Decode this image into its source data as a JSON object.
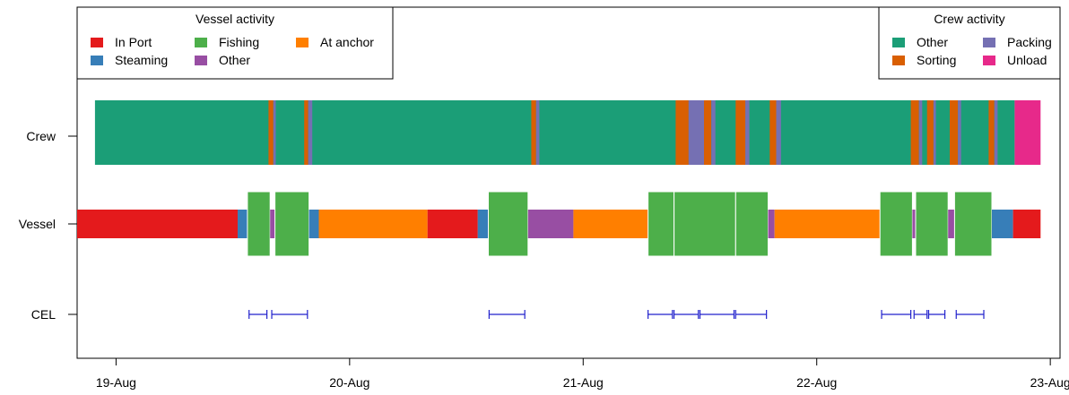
{
  "chart_data": {
    "type": "timeline",
    "title": "",
    "xlabel": "",
    "ylabel": "",
    "x_ticks": [
      "19-Aug",
      "20-Aug",
      "21-Aug",
      "22-Aug",
      "23-Aug"
    ],
    "x_range": [
      "2023-08-18 20:00",
      "2023-08-23 01:00"
    ],
    "rows": [
      "Crew",
      "Vessel",
      "CEL"
    ],
    "colors": {
      "In Port": "#E41A1C",
      "Steaming": "#377EB8",
      "Fishing": "#4DAF4A",
      "VesselOther": "#984EA3",
      "At anchor": "#FF7F00",
      "CrewOther": "#1B9E77",
      "Sorting": "#D95F02",
      "Packing": "#7570B3",
      "Unload": "#E7298A",
      "CEL": "#2222CC"
    },
    "legends": {
      "vessel": {
        "title": "Vessel activity",
        "placement": "top-left",
        "entries": [
          {
            "label": "In Port",
            "color_key": "In Port"
          },
          {
            "label": "Steaming",
            "color_key": "Steaming"
          },
          {
            "label": "Fishing",
            "color_key": "Fishing"
          },
          {
            "label": "Other",
            "color_key": "VesselOther"
          },
          {
            "label": "At anchor",
            "color_key": "At anchor"
          }
        ]
      },
      "crew": {
        "title": "Crew activity",
        "placement": "top-right",
        "entries": [
          {
            "label": "Other",
            "color_key": "CrewOther"
          },
          {
            "label": "Sorting",
            "color_key": "Sorting"
          },
          {
            "label": "Packing",
            "color_key": "Packing"
          },
          {
            "label": "Unload",
            "color_key": "Unload"
          }
        ]
      }
    },
    "vessel": [
      {
        "activity": "In Port",
        "color_key": "In Port",
        "start": "2023-08-18 20:00",
        "end": "2023-08-19 12:30"
      },
      {
        "activity": "Steaming",
        "color_key": "Steaming",
        "start": "2023-08-19 12:30",
        "end": "2023-08-19 13:30"
      },
      {
        "activity": "Fishing",
        "color_key": "Fishing",
        "start": "2023-08-19 13:30",
        "end": "2023-08-19 15:50"
      },
      {
        "activity": "Other",
        "color_key": "VesselOther",
        "start": "2023-08-19 15:50",
        "end": "2023-08-19 16:20"
      },
      {
        "activity": "Fishing",
        "color_key": "Fishing",
        "start": "2023-08-19 16:20",
        "end": "2023-08-19 19:50"
      },
      {
        "activity": "Steaming",
        "color_key": "Steaming",
        "start": "2023-08-19 19:50",
        "end": "2023-08-19 20:50"
      },
      {
        "activity": "At anchor",
        "color_key": "At anchor",
        "start": "2023-08-19 20:50",
        "end": "2023-08-20 08:00"
      },
      {
        "activity": "In Port",
        "color_key": "In Port",
        "start": "2023-08-20 08:00",
        "end": "2023-08-20 13:10"
      },
      {
        "activity": "Steaming",
        "color_key": "Steaming",
        "start": "2023-08-20 13:10",
        "end": "2023-08-20 14:15"
      },
      {
        "activity": "Fishing",
        "color_key": "Fishing",
        "start": "2023-08-20 14:15",
        "end": "2023-08-20 18:20"
      },
      {
        "activity": "Other",
        "color_key": "VesselOther",
        "start": "2023-08-20 18:20",
        "end": "2023-08-20 23:00"
      },
      {
        "activity": "At anchor",
        "color_key": "At anchor",
        "start": "2023-08-20 23:00",
        "end": "2023-08-21 06:40"
      },
      {
        "activity": "Fishing",
        "color_key": "Fishing",
        "start": "2023-08-21 06:40",
        "end": "2023-08-21 09:20"
      },
      {
        "activity": "Fishing",
        "color_key": "Fishing",
        "start": "2023-08-21 09:20",
        "end": "2023-08-21 15:40"
      },
      {
        "activity": "Fishing",
        "color_key": "Fishing",
        "start": "2023-08-21 15:40",
        "end": "2023-08-21 19:00"
      },
      {
        "activity": "Other",
        "color_key": "VesselOther",
        "start": "2023-08-21 19:00",
        "end": "2023-08-21 19:40"
      },
      {
        "activity": "At anchor",
        "color_key": "At anchor",
        "start": "2023-08-21 19:40",
        "end": "2023-08-22 06:30"
      },
      {
        "activity": "Fishing",
        "color_key": "Fishing",
        "start": "2023-08-22 06:30",
        "end": "2023-08-22 09:50"
      },
      {
        "activity": "Other",
        "color_key": "VesselOther",
        "start": "2023-08-22 09:50",
        "end": "2023-08-22 10:10"
      },
      {
        "activity": "Fishing",
        "color_key": "Fishing",
        "start": "2023-08-22 10:10",
        "end": "2023-08-22 13:30"
      },
      {
        "activity": "Other",
        "color_key": "VesselOther",
        "start": "2023-08-22 13:30",
        "end": "2023-08-22 14:10"
      },
      {
        "activity": "Fishing",
        "color_key": "Fishing",
        "start": "2023-08-22 14:10",
        "end": "2023-08-22 18:00"
      },
      {
        "activity": "Steaming",
        "color_key": "Steaming",
        "start": "2023-08-22 18:00",
        "end": "2023-08-22 20:10"
      },
      {
        "activity": "In Port",
        "color_key": "In Port",
        "start": "2023-08-22 20:10",
        "end": "2023-08-22 23:00"
      }
    ],
    "crew": [
      {
        "activity": "Other",
        "color_key": "CrewOther",
        "start": "2023-08-18 21:50",
        "end": "2023-08-22 20:20"
      },
      {
        "activity": "Sorting",
        "color_key": "Sorting",
        "start": "2023-08-19 15:40",
        "end": "2023-08-19 16:10"
      },
      {
        "activity": "Packing",
        "color_key": "Packing",
        "start": "2023-08-19 16:10",
        "end": "2023-08-19 16:25"
      },
      {
        "activity": "Sorting",
        "color_key": "Sorting",
        "start": "2023-08-19 19:20",
        "end": "2023-08-19 19:45"
      },
      {
        "activity": "Packing",
        "color_key": "Packing",
        "start": "2023-08-19 19:45",
        "end": "2023-08-19 20:10"
      },
      {
        "activity": "Sorting",
        "color_key": "Sorting",
        "start": "2023-08-20 18:40",
        "end": "2023-08-20 19:10"
      },
      {
        "activity": "Packing",
        "color_key": "Packing",
        "start": "2023-08-20 19:10",
        "end": "2023-08-20 19:30"
      },
      {
        "activity": "Sorting",
        "color_key": "Sorting",
        "start": "2023-08-21 09:30",
        "end": "2023-08-21 10:50"
      },
      {
        "activity": "Packing",
        "color_key": "Packing",
        "start": "2023-08-21 10:50",
        "end": "2023-08-21 12:25"
      },
      {
        "activity": "Sorting",
        "color_key": "Sorting",
        "start": "2023-08-21 12:25",
        "end": "2023-08-21 13:10"
      },
      {
        "activity": "Packing",
        "color_key": "Packing",
        "start": "2023-08-21 13:10",
        "end": "2023-08-21 13:35"
      },
      {
        "activity": "Sorting",
        "color_key": "Sorting",
        "start": "2023-08-21 15:40",
        "end": "2023-08-21 16:40"
      },
      {
        "activity": "Packing",
        "color_key": "Packing",
        "start": "2023-08-21 16:40",
        "end": "2023-08-21 17:05"
      },
      {
        "activity": "Sorting",
        "color_key": "Sorting",
        "start": "2023-08-21 19:10",
        "end": "2023-08-21 19:50"
      },
      {
        "activity": "Packing",
        "color_key": "Packing",
        "start": "2023-08-21 19:50",
        "end": "2023-08-21 20:20"
      },
      {
        "activity": "Sorting",
        "color_key": "Sorting",
        "start": "2023-08-22 09:40",
        "end": "2023-08-22 10:30"
      },
      {
        "activity": "Packing",
        "color_key": "Packing",
        "start": "2023-08-22 10:30",
        "end": "2023-08-22 10:50"
      },
      {
        "activity": "Sorting",
        "color_key": "Sorting",
        "start": "2023-08-22 11:20",
        "end": "2023-08-22 12:00"
      },
      {
        "activity": "Packing",
        "color_key": "Packing",
        "start": "2023-08-22 12:00",
        "end": "2023-08-22 12:15"
      },
      {
        "activity": "Sorting",
        "color_key": "Sorting",
        "start": "2023-08-22 13:40",
        "end": "2023-08-22 14:30"
      },
      {
        "activity": "Packing",
        "color_key": "Packing",
        "start": "2023-08-22 14:30",
        "end": "2023-08-22 14:50"
      },
      {
        "activity": "Sorting",
        "color_key": "Sorting",
        "start": "2023-08-22 17:40",
        "end": "2023-08-22 18:15"
      },
      {
        "activity": "Packing",
        "color_key": "Packing",
        "start": "2023-08-22 18:15",
        "end": "2023-08-22 18:35"
      },
      {
        "activity": "Unload",
        "color_key": "Unload",
        "start": "2023-08-22 20:20",
        "end": "2023-08-22 23:00"
      }
    ],
    "cel": [
      {
        "start": "2023-08-19 13:40",
        "end": "2023-08-19 15:30"
      },
      {
        "start": "2023-08-19 16:00",
        "end": "2023-08-19 19:40"
      },
      {
        "start": "2023-08-20 14:20",
        "end": "2023-08-20 18:00"
      },
      {
        "start": "2023-08-21 06:40",
        "end": "2023-08-21 09:10"
      },
      {
        "start": "2023-08-21 09:20",
        "end": "2023-08-21 11:50"
      },
      {
        "start": "2023-08-21 12:00",
        "end": "2023-08-21 15:30"
      },
      {
        "start": "2023-08-21 15:40",
        "end": "2023-08-21 18:50"
      },
      {
        "start": "2023-08-22 06:40",
        "end": "2023-08-22 09:40"
      },
      {
        "start": "2023-08-22 10:00",
        "end": "2023-08-22 11:20"
      },
      {
        "start": "2023-08-22 11:30",
        "end": "2023-08-22 13:10"
      },
      {
        "start": "2023-08-22 14:20",
        "end": "2023-08-22 17:10"
      }
    ]
  }
}
